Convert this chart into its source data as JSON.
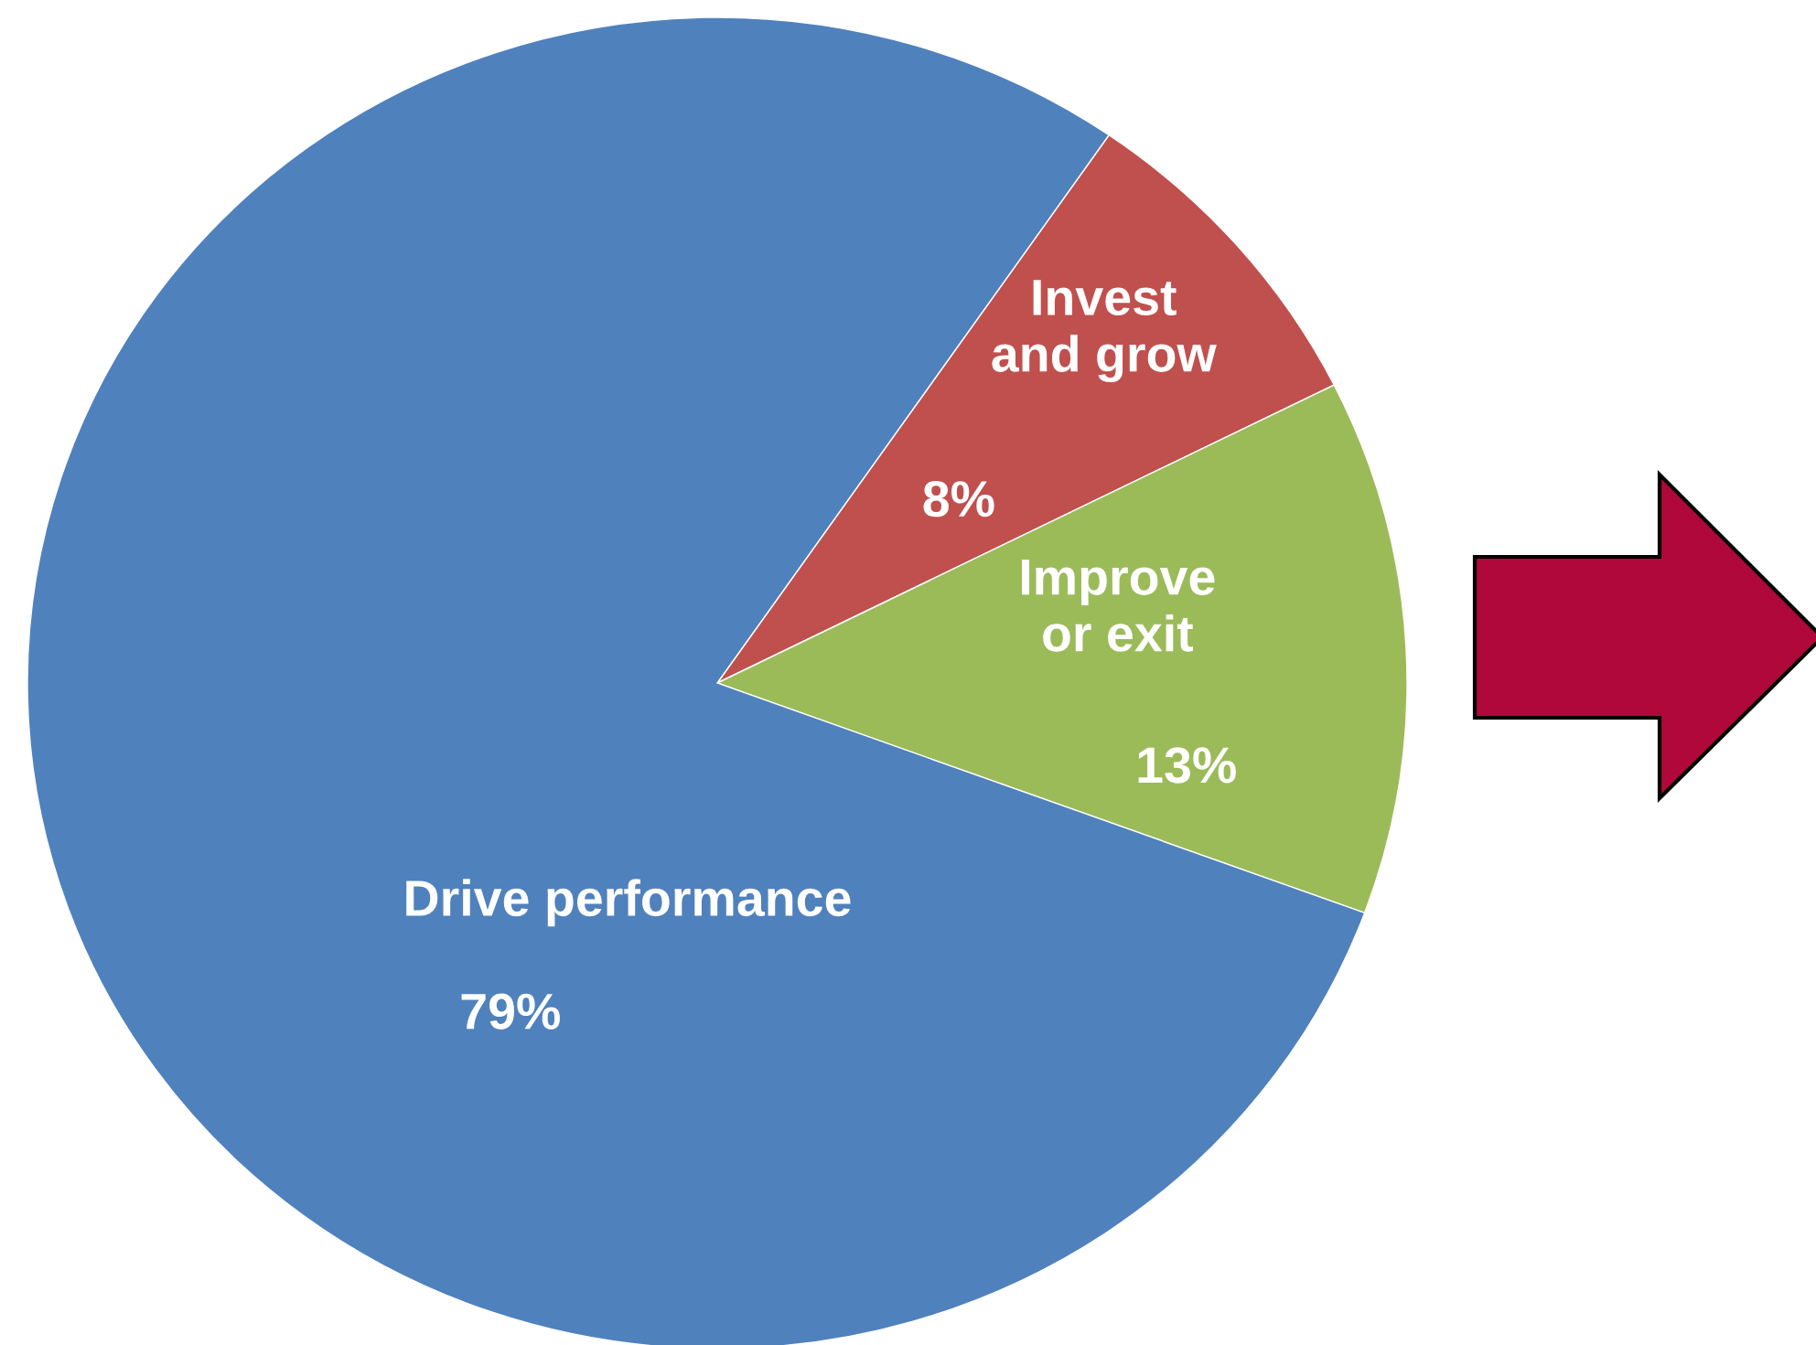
{
  "chart_data": {
    "type": "pie",
    "categories": [
      "Invest\nand grow",
      "Improve\nor exit",
      "Drive performance"
    ],
    "values": [
      8,
      13,
      79
    ],
    "colors": [
      "#c0504d",
      "#9bbb59",
      "#4f81bd"
    ],
    "value_labels": [
      "8%",
      "13%",
      "79%"
    ]
  }
}
